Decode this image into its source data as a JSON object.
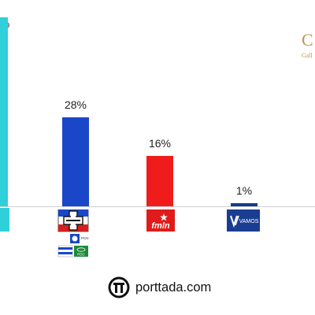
{
  "chart_data": {
    "type": "bar",
    "categories": [
      "",
      "ARENA / PCN / PDC",
      "FMLN",
      "VAMOS",
      ""
    ],
    "series": [
      {
        "values": [
          null,
          28,
          16,
          1,
          null
        ],
        "colors": [
          "#2fd0da",
          "#1a46c8",
          "#f01c1c",
          "#143e8c",
          "#2fd0da"
        ],
        "labels": [
          "",
          "28%",
          "16%",
          "1%",
          ""
        ]
      }
    ],
    "ylim": [
      0,
      65
    ],
    "grid": false,
    "legend": "none"
  },
  "corner_label_partial": "%",
  "pollster_logo": {
    "letter": "C",
    "text": "Gall"
  },
  "party_logos": {
    "alliance_pcn": "PCN",
    "alliance_pdc": "PDC",
    "fmln": "fmln",
    "vamos": "VAMOS"
  },
  "footer": {
    "brand": "porttada.com"
  },
  "colors": {
    "cyan": "#2fd0da",
    "blue": "#1a46c8",
    "red": "#f01c1c",
    "navy": "#143e8c",
    "gold": "#b89a55"
  }
}
